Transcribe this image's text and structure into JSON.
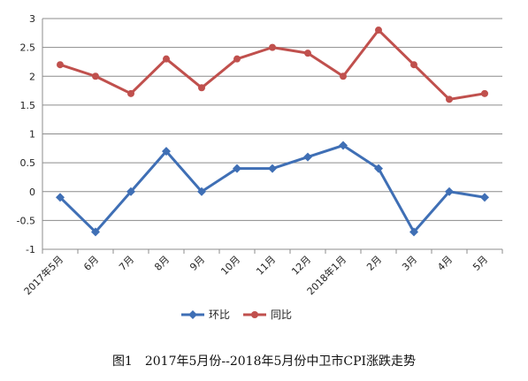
{
  "chart_data": {
    "type": "line",
    "categories": [
      "2017年5月",
      "6月",
      "7月",
      "8月",
      "9月",
      "10月",
      "11月",
      "12月",
      "2018年1月",
      "2月",
      "3月",
      "4月",
      "5月"
    ],
    "series": [
      {
        "name": "环比",
        "color": "#3F6FB5",
        "marker": "diamond",
        "values": [
          -0.1,
          -0.7,
          0.0,
          0.7,
          0.0,
          0.4,
          0.4,
          0.6,
          0.8,
          0.4,
          -0.7,
          0.0,
          -0.1
        ]
      },
      {
        "name": "同比",
        "color": "#C0504D",
        "marker": "circle",
        "values": [
          2.2,
          2.0,
          1.7,
          2.3,
          1.8,
          2.3,
          2.5,
          2.4,
          2.0,
          2.8,
          2.2,
          1.6,
          1.7
        ]
      }
    ],
    "ylim": [
      -1,
      3
    ],
    "yticks": [
      "3",
      "2.5",
      "2",
      "1.5",
      "1",
      "0.5",
      "0",
      "-0.5",
      "-1"
    ],
    "grid": true,
    "legend": "bottom-center"
  },
  "caption": "图1　2017年5月份--2018年5月份中卫市CPI涨跌走势"
}
